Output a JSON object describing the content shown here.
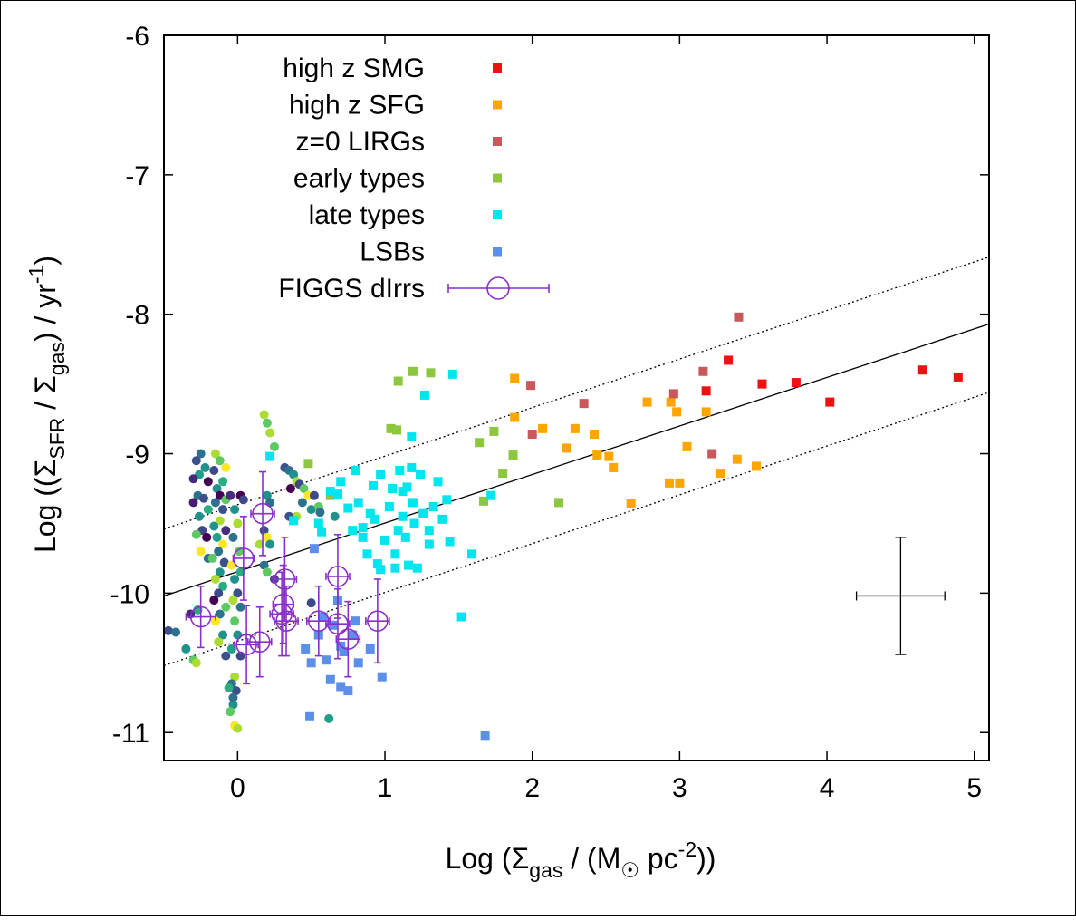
{
  "chart_data": {
    "type": "scatter",
    "xlabel": {
      "base": "Log  (Σ",
      "sub1": "gas",
      "mid": " / (M",
      "sun": "☉",
      "tail": " pc",
      "sup": "-2",
      "end": "))"
    },
    "ylabel": {
      "base": "Log ((Σ",
      "sub1": "SFR",
      "mid": " / Σ",
      "sub2": "gas",
      "tail": ") / yr",
      "sup": "-1",
      "end": ")"
    },
    "xlim": [
      -0.5,
      5.1
    ],
    "ylim": [
      -11.2,
      -6
    ],
    "xticks": [
      "0",
      "1",
      "2",
      "3",
      "4",
      "5"
    ],
    "yticks": [
      "-6",
      "-7",
      "-8",
      "-9",
      "-10",
      "-11"
    ],
    "legend_position": "top-left",
    "fit_line": {
      "x0": -0.5,
      "y0": -10.02,
      "x1": 5.1,
      "y1": -8.07
    },
    "scatter_lines": [
      {
        "x0": -0.5,
        "y0": -9.54,
        "x1": 5.1,
        "y1": -7.59
      },
      {
        "x0": -0.5,
        "y0": -10.52,
        "x1": 5.1,
        "y1": -8.56
      }
    ],
    "typical_error": {
      "x": 4.5,
      "y": -10.02,
      "xerr": 0.3,
      "yerr": 0.42
    },
    "series": [
      {
        "name": "high z SMG",
        "color": "#ee1111",
        "marker": "square",
        "points": [
          [
            3.18,
            -8.55
          ],
          [
            3.33,
            -8.33
          ],
          [
            3.56,
            -8.5
          ],
          [
            3.79,
            -8.49
          ],
          [
            4.02,
            -8.63
          ],
          [
            4.65,
            -8.4
          ],
          [
            4.89,
            -8.45
          ]
        ]
      },
      {
        "name": "high z SFG",
        "color": "#ffa500",
        "marker": "square",
        "points": [
          [
            1.88,
            -8.46
          ],
          [
            1.88,
            -8.74
          ],
          [
            2.07,
            -8.82
          ],
          [
            2.23,
            -8.96
          ],
          [
            2.29,
            -8.82
          ],
          [
            2.42,
            -8.86
          ],
          [
            2.44,
            -9.01
          ],
          [
            2.52,
            -9.02
          ],
          [
            2.55,
            -9.1
          ],
          [
            2.67,
            -9.36
          ],
          [
            2.78,
            -8.63
          ],
          [
            2.93,
            -9.21
          ],
          [
            2.94,
            -8.63
          ],
          [
            2.98,
            -8.7
          ],
          [
            3.0,
            -9.21
          ],
          [
            3.05,
            -8.95
          ],
          [
            3.18,
            -8.7
          ],
          [
            3.28,
            -9.14
          ],
          [
            3.39,
            -9.04
          ],
          [
            3.52,
            -9.09
          ]
        ]
      },
      {
        "name": "z=0 LIRGs",
        "color": "#c8585a",
        "marker": "square",
        "points": [
          [
            1.99,
            -8.51
          ],
          [
            2.0,
            -8.86
          ],
          [
            2.35,
            -8.64
          ],
          [
            2.96,
            -8.57
          ],
          [
            3.16,
            -8.41
          ],
          [
            3.22,
            -9.0
          ],
          [
            3.4,
            -8.02
          ]
        ]
      },
      {
        "name": "early types",
        "color": "#8dc63f",
        "marker": "square",
        "points": [
          [
            0.48,
            -9.07
          ],
          [
            1.04,
            -8.82
          ],
          [
            1.08,
            -8.83
          ],
          [
            1.09,
            -8.48
          ],
          [
            1.19,
            -8.41
          ],
          [
            1.31,
            -8.42
          ],
          [
            1.64,
            -8.92
          ],
          [
            1.74,
            -8.84
          ],
          [
            1.8,
            -9.14
          ],
          [
            1.87,
            -9.01
          ],
          [
            2.18,
            -9.35
          ],
          [
            1.67,
            -9.34
          ],
          [
            0.63,
            -9.3
          ]
        ]
      },
      {
        "name": "late types",
        "color": "#00e5ee",
        "marker": "square",
        "points": [
          [
            0.22,
            -9.02
          ],
          [
            0.38,
            -9.48
          ],
          [
            0.55,
            -9.5
          ],
          [
            0.57,
            -9.56
          ],
          [
            0.63,
            -9.27
          ],
          [
            0.68,
            -9.29
          ],
          [
            0.7,
            -9.2
          ],
          [
            0.75,
            -9.39
          ],
          [
            0.8,
            -9.12
          ],
          [
            0.82,
            -9.35
          ],
          [
            0.85,
            -9.6
          ],
          [
            0.88,
            -9.72
          ],
          [
            0.9,
            -9.43
          ],
          [
            0.92,
            -9.23
          ],
          [
            0.95,
            -9.79
          ],
          [
            0.97,
            -9.15
          ],
          [
            1.0,
            -9.62
          ],
          [
            1.03,
            -9.38
          ],
          [
            1.05,
            -9.25
          ],
          [
            1.07,
            -9.72
          ],
          [
            1.09,
            -9.55
          ],
          [
            1.1,
            -9.12
          ],
          [
            1.12,
            -9.45
          ],
          [
            1.14,
            -9.6
          ],
          [
            1.15,
            -9.24
          ],
          [
            1.16,
            -9.8
          ],
          [
            1.18,
            -8.88
          ],
          [
            1.19,
            -9.35
          ],
          [
            1.2,
            -9.5
          ],
          [
            1.22,
            -9.82
          ],
          [
            1.24,
            -9.15
          ],
          [
            1.26,
            -9.43
          ],
          [
            1.27,
            -8.58
          ],
          [
            1.3,
            -9.65
          ],
          [
            1.33,
            -9.38
          ],
          [
            1.36,
            -9.2
          ],
          [
            1.39,
            -9.47
          ],
          [
            1.42,
            -9.33
          ],
          [
            1.44,
            -9.63
          ],
          [
            1.46,
            -8.43
          ],
          [
            1.52,
            -10.17
          ],
          [
            1.59,
            -9.72
          ],
          [
            1.72,
            -9.3
          ],
          [
            0.97,
            -9.83
          ],
          [
            1.07,
            -9.82
          ],
          [
            0.85,
            -9.53
          ],
          [
            1.12,
            -9.27
          ],
          [
            1.3,
            -9.55
          ],
          [
            1.18,
            -9.1
          ],
          [
            0.78,
            -9.55
          ],
          [
            0.93,
            -9.47
          ]
        ]
      },
      {
        "name": "LSBs",
        "color": "#5b8fe8",
        "marker": "square",
        "points": [
          [
            0.46,
            -10.4
          ],
          [
            0.49,
            -10.88
          ],
          [
            0.5,
            -10.5
          ],
          [
            0.55,
            -10.3
          ],
          [
            0.6,
            -10.48
          ],
          [
            0.63,
            -10.62
          ],
          [
            0.65,
            -10.23
          ],
          [
            0.68,
            -10.05
          ],
          [
            0.7,
            -10.67
          ],
          [
            0.72,
            -10.42
          ],
          [
            0.75,
            -10.7
          ],
          [
            0.78,
            -10.3
          ],
          [
            0.8,
            -10.2
          ],
          [
            0.82,
            -10.5
          ],
          [
            0.9,
            -10.4
          ],
          [
            0.98,
            -10.6
          ],
          [
            1.68,
            -11.02
          ],
          [
            0.52,
            -9.68
          ],
          [
            0.58,
            -10.17
          ],
          [
            0.7,
            -10.38
          ]
        ]
      },
      {
        "name": "FIGGS dIrrs",
        "color": "#8b2fc9",
        "marker": "circle-errorbar",
        "points": [
          [
            -0.25,
            -10.17,
            0.1,
            0.22
          ],
          [
            0.06,
            -10.37,
            0.08,
            0.28
          ],
          [
            0.15,
            -10.35,
            0.08,
            0.25
          ],
          [
            0.17,
            -9.43,
            0.08,
            0.3
          ],
          [
            0.04,
            -9.75,
            0.07,
            0.3
          ],
          [
            0.3,
            -10.15,
            0.08,
            0.3
          ],
          [
            0.33,
            -10.2,
            0.08,
            0.25
          ],
          [
            0.32,
            -9.9,
            0.08,
            0.3
          ],
          [
            0.31,
            -10.08,
            0.07,
            0.28
          ],
          [
            0.55,
            -10.2,
            0.08,
            0.25
          ],
          [
            0.68,
            -9.88,
            0.08,
            0.3
          ],
          [
            0.68,
            -10.22,
            0.08,
            0.25
          ],
          [
            0.75,
            -10.33,
            0.08,
            0.27
          ],
          [
            0.95,
            -10.2,
            0.08,
            0.3
          ]
        ]
      }
    ],
    "color_scale_points": [
      [
        -0.47,
        -10.27,
        "#3b518b"
      ],
      [
        -0.42,
        -10.28,
        "#2c728e"
      ],
      [
        -0.35,
        -10.4,
        "#21918c"
      ],
      [
        -0.3,
        -10.48,
        "#5ec962"
      ],
      [
        -0.28,
        -10.5,
        "#aadc32"
      ],
      [
        -0.27,
        -10.12,
        "#28ae80"
      ],
      [
        -0.32,
        -10.15,
        "#472d7b"
      ],
      [
        -0.25,
        -9.0,
        "#2c728e"
      ],
      [
        -0.28,
        -9.05,
        "#3b518b"
      ],
      [
        -0.22,
        -9.1,
        "#21918c"
      ],
      [
        -0.2,
        -9.2,
        "#440154"
      ],
      [
        -0.26,
        -9.15,
        "#1fa088"
      ],
      [
        -0.3,
        -9.18,
        "#482878"
      ],
      [
        -0.27,
        -9.3,
        "#2c728e"
      ],
      [
        -0.23,
        -9.32,
        "#3b518b"
      ],
      [
        -0.3,
        -9.35,
        "#481f70"
      ],
      [
        -0.26,
        -9.45,
        "#21918c"
      ],
      [
        -0.2,
        -9.4,
        "#28ae80"
      ],
      [
        -0.24,
        -9.55,
        "#3e4989"
      ],
      [
        -0.28,
        -9.58,
        "#5ec962"
      ],
      [
        -0.21,
        -9.6,
        "#440154"
      ],
      [
        -0.25,
        -9.7,
        "#fde725"
      ],
      [
        -0.2,
        -9.75,
        "#2c728e"
      ],
      [
        -0.15,
        -9.0,
        "#aadc32"
      ],
      [
        -0.12,
        -9.05,
        "#5ec962"
      ],
      [
        -0.08,
        -9.1,
        "#fde725"
      ],
      [
        -0.16,
        -9.12,
        "#3e4989"
      ],
      [
        -0.1,
        -9.2,
        "#28ae80"
      ],
      [
        -0.14,
        -9.25,
        "#21918c"
      ],
      [
        -0.12,
        -9.3,
        "#440154"
      ],
      [
        -0.08,
        -9.33,
        "#5ec962"
      ],
      [
        -0.15,
        -9.35,
        "#2c728e"
      ],
      [
        -0.1,
        -9.4,
        "#3b518b"
      ],
      [
        -0.12,
        -9.48,
        "#aadc32"
      ],
      [
        -0.16,
        -9.52,
        "#21918c"
      ],
      [
        -0.08,
        -9.55,
        "#472d7b"
      ],
      [
        -0.14,
        -9.6,
        "#1fa088"
      ],
      [
        -0.1,
        -9.65,
        "#fde725"
      ],
      [
        -0.13,
        -9.7,
        "#2c728e"
      ],
      [
        -0.17,
        -9.75,
        "#5ec962"
      ],
      [
        -0.09,
        -9.78,
        "#3b518b"
      ],
      [
        -0.12,
        -9.85,
        "#21918c"
      ],
      [
        -0.15,
        -9.9,
        "#aadc32"
      ],
      [
        -0.1,
        -9.95,
        "#28ae80"
      ],
      [
        -0.13,
        -10.0,
        "#3e4989"
      ],
      [
        -0.16,
        -10.05,
        "#440154"
      ],
      [
        -0.08,
        -10.1,
        "#5ec962"
      ],
      [
        -0.12,
        -10.15,
        "#2c728e"
      ],
      [
        -0.15,
        -10.2,
        "#fde725"
      ],
      [
        -0.1,
        -10.3,
        "#21918c"
      ],
      [
        -0.13,
        -10.35,
        "#aadc32"
      ],
      [
        -0.08,
        -10.45,
        "#3b518b"
      ],
      [
        -0.05,
        -9.3,
        "#472d7b"
      ],
      [
        -0.02,
        -9.4,
        "#21918c"
      ],
      [
        0.0,
        -9.5,
        "#aadc32"
      ],
      [
        0.02,
        -9.3,
        "#440154"
      ],
      [
        0.04,
        -9.33,
        "#3e4989"
      ],
      [
        -0.03,
        -9.6,
        "#2c728e"
      ],
      [
        0.01,
        -9.7,
        "#5ec962"
      ],
      [
        -0.04,
        -9.8,
        "#fde725"
      ],
      [
        0.02,
        -9.85,
        "#28ae80"
      ],
      [
        -0.02,
        -9.9,
        "#21918c"
      ],
      [
        0.0,
        -10.0,
        "#3b518b"
      ],
      [
        -0.03,
        -10.05,
        "#aadc32"
      ],
      [
        0.02,
        -10.1,
        "#2c728e"
      ],
      [
        -0.02,
        -10.2,
        "#5ec962"
      ],
      [
        0.0,
        -10.3,
        "#21918c"
      ],
      [
        -0.04,
        -10.4,
        "#1fa088"
      ],
      [
        0.02,
        -10.45,
        "#3e4989"
      ],
      [
        -0.02,
        -10.6,
        "#aadc32"
      ],
      [
        -0.04,
        -10.65,
        "#2c728e"
      ],
      [
        -0.01,
        -10.7,
        "#3b518b"
      ],
      [
        -0.03,
        -10.8,
        "#21918c"
      ],
      [
        -0.05,
        -10.85,
        "#5ec962"
      ],
      [
        -0.02,
        -10.95,
        "#fde725"
      ],
      [
        0.0,
        -10.97,
        "#aadc32"
      ],
      [
        -0.03,
        -10.75,
        "#2c728e"
      ],
      [
        -0.06,
        -10.68,
        "#28ae80"
      ],
      [
        0.18,
        -8.72,
        "#aadc32"
      ],
      [
        0.2,
        -8.78,
        "#5ec962"
      ],
      [
        0.22,
        -8.85,
        "#aadc32"
      ],
      [
        0.25,
        -8.95,
        "#5ec962"
      ],
      [
        0.2,
        -9.3,
        "#21918c"
      ],
      [
        0.22,
        -9.35,
        "#2c728e"
      ],
      [
        0.18,
        -9.55,
        "#3b518b"
      ],
      [
        0.2,
        -9.6,
        "#fde725"
      ],
      [
        0.22,
        -9.65,
        "#21918c"
      ],
      [
        0.15,
        -9.65,
        "#aadc32"
      ],
      [
        0.18,
        -9.8,
        "#2c728e"
      ],
      [
        0.2,
        -9.85,
        "#5ec962"
      ],
      [
        0.25,
        -9.9,
        "#3e4989"
      ],
      [
        0.32,
        -9.1,
        "#3b518b"
      ],
      [
        0.35,
        -9.12,
        "#2c728e"
      ],
      [
        0.38,
        -9.15,
        "#21918c"
      ],
      [
        0.4,
        -9.2,
        "#aadc32"
      ],
      [
        0.42,
        -9.22,
        "#3e4989"
      ],
      [
        0.36,
        -9.25,
        "#440154"
      ],
      [
        0.45,
        -9.25,
        "#5ec962"
      ],
      [
        0.48,
        -9.3,
        "#fde725"
      ],
      [
        0.44,
        -9.35,
        "#2c728e"
      ],
      [
        0.5,
        -9.4,
        "#21918c"
      ],
      [
        0.4,
        -9.45,
        "#aadc32"
      ],
      [
        0.35,
        -9.45,
        "#3b518b"
      ],
      [
        0.52,
        -9.3,
        "#3e4989"
      ],
      [
        0.55,
        -9.38,
        "#5ec962"
      ],
      [
        0.56,
        -9.42,
        "#2c728e"
      ],
      [
        0.5,
        -10.07,
        "#3e4989"
      ],
      [
        0.62,
        -10.9,
        "#1fa088"
      ],
      [
        0.66,
        -9.45,
        "#21918c"
      ]
    ]
  }
}
